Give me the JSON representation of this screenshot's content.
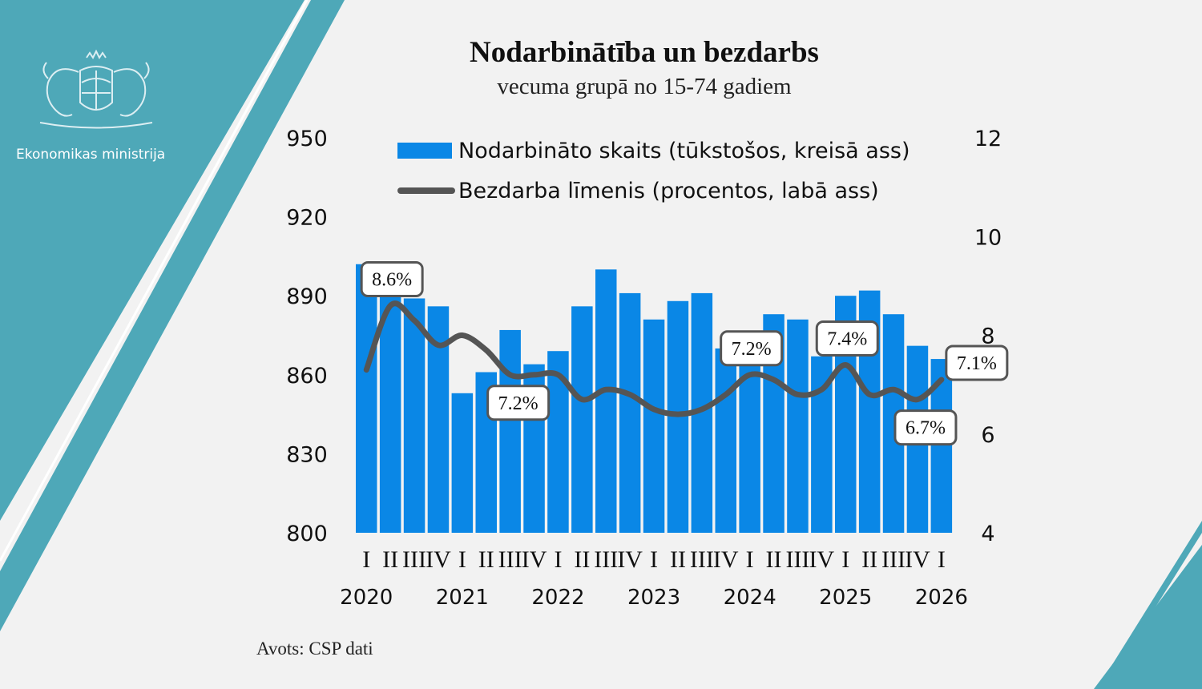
{
  "org": {
    "name": "Ekonomikas ministrija",
    "logo": "coat-of-arms-icon"
  },
  "source": "Avots: CSP dati",
  "colors": {
    "teal": "#4ea8b8",
    "bar": "#0a87e6",
    "line": "#555555",
    "background": "#f2f2f2"
  },
  "chart_data": {
    "type": "bar",
    "title": "Nodarbinātība un bezdarbs",
    "subtitle": "vecuma grupā no 15-74 gadiem",
    "legend": {
      "bar": "Nodarbināto skaits (tūkstošos, kreisā ass)",
      "line": "Bezdarba līmenis (procentos, labā ass)"
    },
    "quarter_labels": [
      "I",
      "II",
      "III",
      "IV",
      "I",
      "II",
      "III",
      "IV",
      "I",
      "II",
      "III",
      "IV",
      "I",
      "II",
      "III",
      "IV",
      "I",
      "II",
      "III",
      "IV",
      "I",
      "II",
      "III",
      "IV",
      "I"
    ],
    "years": [
      "2020",
      "2021",
      "2022",
      "2023",
      "2024",
      "2025",
      "2026"
    ],
    "left_axis": {
      "ticks": [
        "800",
        "830",
        "860",
        "890",
        "920",
        "950"
      ],
      "range": [
        800,
        950
      ]
    },
    "right_axis": {
      "ticks": [
        "4",
        "6",
        "8",
        "10",
        "12"
      ],
      "range": [
        4,
        12
      ]
    },
    "series": [
      {
        "name": "Nodarbināto skaits (tūkstošos, kreisā ass)",
        "axis": "left",
        "values": [
          902,
          895,
          889,
          886,
          853,
          861,
          877,
          864,
          869,
          886,
          900,
          891,
          881,
          888,
          891,
          870,
          870,
          883,
          881,
          867,
          890,
          892,
          883,
          871,
          866
        ]
      },
      {
        "name": "Bezdarba līmenis (procentos, labā ass)",
        "axis": "right",
        "values": [
          7.3,
          8.6,
          8.3,
          7.8,
          8.0,
          7.7,
          7.2,
          7.2,
          7.2,
          6.7,
          6.9,
          6.8,
          6.5,
          6.4,
          6.5,
          6.8,
          7.2,
          7.1,
          6.8,
          6.9,
          7.4,
          6.8,
          6.9,
          6.7,
          7.1
        ]
      }
    ],
    "annotations": [
      {
        "index": 1,
        "text": "8.6%",
        "position": "above"
      },
      {
        "index": 6,
        "text": "7.2%",
        "position": "below"
      },
      {
        "index": 16,
        "text": "7.2%",
        "position": "above"
      },
      {
        "index": 20,
        "text": "7.4%",
        "position": "above"
      },
      {
        "index": 23,
        "text": "6.7%",
        "position": "below"
      },
      {
        "index": 24,
        "text": "7.1%",
        "position": "right"
      }
    ]
  }
}
